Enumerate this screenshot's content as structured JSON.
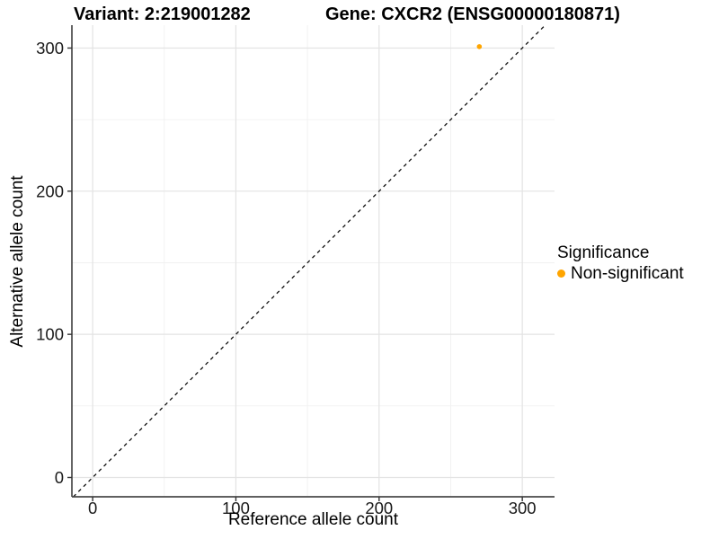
{
  "chart_data": {
    "type": "scatter",
    "titles": {
      "left": "Variant: 2:219001282",
      "right": "Gene: CXCR2 (ENSG00000180871)"
    },
    "xlabel": "Reference allele count",
    "ylabel": "Alternative allele count",
    "xlim": [
      -14.5,
      322.5
    ],
    "ylim": [
      -13.5,
      316
    ],
    "x_ticks": [
      0,
      100,
      200,
      300
    ],
    "y_ticks": [
      0,
      100,
      200,
      300
    ],
    "x_minor_ticks": [
      50,
      150,
      250
    ],
    "y_minor_ticks": [
      50,
      150,
      250
    ],
    "grid": true,
    "identity_line": {
      "style": "dashed",
      "from": -13.5,
      "to": 316,
      "color": "#111111"
    },
    "series": [
      {
        "name": "Non-significant",
        "color": "#FFA500",
        "points": [
          {
            "x": 270,
            "y": 301
          }
        ]
      }
    ],
    "legend": {
      "title": "Significance",
      "position": "right",
      "entries": [
        {
          "label": "Non-significant",
          "color": "#FFA500"
        }
      ]
    },
    "colors": {
      "major_grid": "#e3e3e3",
      "minor_grid": "#f1f1f1",
      "axis_line": "#4a4a4a",
      "tick_mark": "#333333",
      "tick_label": "#1a1a1a"
    }
  }
}
